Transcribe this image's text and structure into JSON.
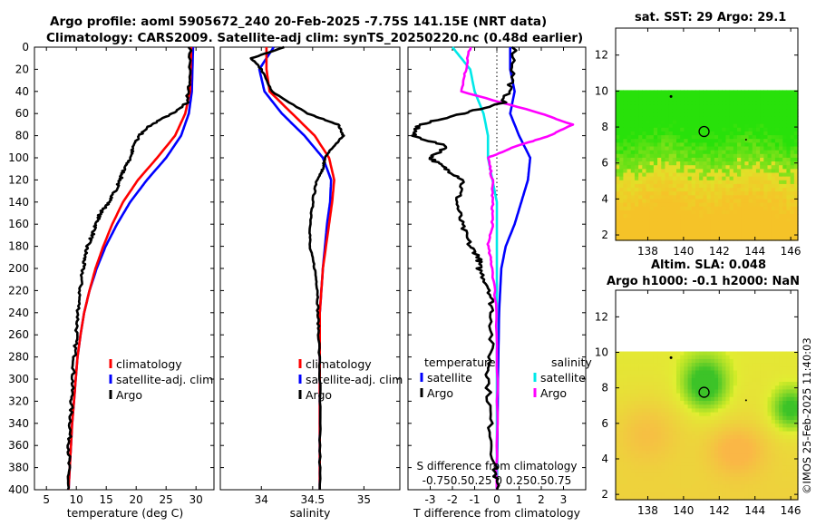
{
  "header": {
    "title_line1": "Argo profile: aoml 5905672_240 20-Feb-2025 -7.75S 141.15E (NRT data)",
    "title_line2": "Climatology: CARS2009. Satellite-adj clim: synTS_20250220.nc (0.48d earlier)"
  },
  "side_label": "©IMOS 25-Feb-2025 11:40:03",
  "colors": {
    "climatology": "#ff0000",
    "satellite": "#0000ff",
    "argo": "#000000",
    "sat_salinity": "#00e8e8",
    "argo_salinity": "#ff00ff"
  },
  "chart_data": [
    {
      "id": "temperature",
      "type": "line",
      "xlabel": "temperature (deg C)",
      "ylabel": "",
      "xlim": [
        3,
        33
      ],
      "ylim": [
        400,
        0
      ],
      "xticks": [
        5,
        10,
        15,
        20,
        25,
        30
      ],
      "yticks": [
        0,
        20,
        40,
        60,
        80,
        100,
        120,
        140,
        160,
        180,
        200,
        220,
        240,
        260,
        280,
        300,
        320,
        340,
        360,
        380,
        400
      ],
      "legend": [
        "climatology",
        "satellite-adj. clim",
        "Argo"
      ],
      "series": [
        {
          "name": "climatology",
          "depth": [
            0,
            40,
            60,
            80,
            100,
            120,
            140,
            160,
            180,
            200,
            220,
            240,
            260,
            280,
            300,
            320,
            340,
            360,
            380,
            400
          ],
          "values": [
            29.2,
            29.0,
            28.2,
            26.5,
            23.5,
            20.3,
            17.8,
            16.0,
            14.5,
            13.2,
            12.2,
            11.3,
            10.7,
            10.2,
            9.9,
            9.6,
            9.3,
            9.1,
            8.9,
            8.7
          ]
        },
        {
          "name": "satellite-adj. clim",
          "depth": [
            0,
            40,
            60,
            80,
            100,
            120,
            140,
            160,
            180,
            200,
            220,
            240,
            260,
            280,
            300,
            320,
            340,
            360,
            380,
            400
          ],
          "values": [
            29.5,
            29.3,
            28.8,
            27.5,
            25.0,
            21.8,
            19.0,
            16.8,
            14.9,
            13.4,
            12.2,
            11.3,
            10.7,
            10.2,
            9.9,
            9.6,
            9.3,
            9.1,
            8.9,
            8.7
          ]
        },
        {
          "name": "Argo",
          "depth": [
            0,
            30,
            50,
            60,
            70,
            80,
            90,
            100,
            110,
            120,
            130,
            140,
            150,
            160,
            170,
            180,
            190,
            200,
            220,
            240,
            260,
            280,
            300,
            320,
            340,
            360,
            380,
            400
          ],
          "values": [
            29.0,
            28.9,
            28.5,
            26.0,
            22.5,
            20.5,
            19.5,
            19.0,
            18.0,
            17.3,
            16.5,
            15.5,
            14.0,
            13.3,
            12.7,
            11.8,
            11.4,
            11.1,
            10.6,
            10.3,
            10.0,
            9.7,
            9.4,
            9.2,
            9.0,
            8.8,
            8.7,
            8.6
          ]
        }
      ]
    },
    {
      "id": "salinity",
      "type": "line",
      "xlabel": "salinity",
      "xlim": [
        33.6,
        35.35
      ],
      "ylim": [
        400,
        0
      ],
      "xticks": [
        34,
        34.5,
        35
      ],
      "legend": [
        "climatology",
        "satellite-adj. clim",
        "Argo"
      ],
      "series": [
        {
          "name": "climatology",
          "depth": [
            0,
            20,
            40,
            60,
            80,
            100,
            120,
            140,
            160,
            200,
            240,
            300,
            350,
            400
          ],
          "values": [
            34.05,
            34.05,
            34.08,
            34.3,
            34.52,
            34.66,
            34.71,
            34.69,
            34.66,
            34.6,
            34.57,
            34.57,
            34.57,
            34.57
          ]
        },
        {
          "name": "satellite-adj. clim",
          "depth": [
            0,
            20,
            40,
            60,
            80,
            100,
            120,
            140,
            160,
            200,
            240,
            300,
            350,
            400
          ],
          "values": [
            34.12,
            33.98,
            34.03,
            34.2,
            34.42,
            34.6,
            34.68,
            34.67,
            34.64,
            34.6,
            34.57,
            34.57,
            34.57,
            34.57
          ]
        },
        {
          "name": "Argo",
          "depth": [
            0,
            10,
            20,
            40,
            60,
            70,
            80,
            90,
            100,
            110,
            120,
            140,
            160,
            180,
            200,
            220,
            240,
            260,
            300,
            350,
            400
          ],
          "values": [
            34.22,
            33.9,
            34.0,
            34.1,
            34.45,
            34.75,
            34.8,
            34.7,
            34.62,
            34.6,
            34.54,
            34.5,
            34.48,
            34.47,
            34.52,
            34.55,
            34.55,
            34.56,
            34.57,
            34.57,
            34.57
          ]
        }
      ]
    },
    {
      "id": "differences",
      "type": "line",
      "xlabel": "T difference from climatology",
      "xlim": [
        -4,
        4
      ],
      "ylim": [
        400,
        0
      ],
      "xticks": [
        -3,
        -2,
        -1,
        0,
        1,
        2,
        3
      ],
      "legend_temperature_title": "temperature",
      "legend_salinity_title": "salinity",
      "legend": [
        "satellite",
        "Argo"
      ],
      "s_axis_label": "S difference from climatology",
      "s_ticks": "-0.750.50.25  0  0.250.50.75",
      "series": [
        {
          "name": "temperature satellite",
          "depth": [
            0,
            20,
            40,
            60,
            80,
            100,
            120,
            140,
            160,
            180,
            200,
            240,
            300,
            400
          ],
          "values": [
            0.6,
            0.6,
            0.8,
            0.6,
            1.0,
            1.5,
            1.4,
            1.1,
            0.8,
            0.4,
            0.2,
            0.1,
            0.05,
            0.0
          ]
        },
        {
          "name": "temperature Argo",
          "depth": [
            0,
            30,
            50,
            60,
            70,
            80,
            90,
            100,
            110,
            120,
            140,
            160,
            180,
            190,
            200,
            220,
            240,
            280,
            300,
            340,
            380,
            400
          ],
          "values": [
            0.8,
            0.7,
            0.3,
            -1.5,
            -3.5,
            -3.8,
            -2.2,
            -3.0,
            -2.3,
            -1.5,
            -1.8,
            -1.6,
            -1.2,
            -0.8,
            -0.8,
            -0.3,
            -0.2,
            -0.3,
            -0.4,
            -0.3,
            -0.1,
            0.0
          ]
        },
        {
          "name": "salinity satellite",
          "depth": [
            0,
            20,
            40,
            60,
            80,
            100,
            140,
            180,
            200,
            240,
            300,
            400
          ],
          "values": [
            -0.5,
            -0.3,
            -0.25,
            -0.15,
            -0.1,
            -0.1,
            0.0,
            0.0,
            0.0,
            0.0,
            0.0,
            0.0
          ]
        },
        {
          "name": "salinity Argo",
          "depth": [
            0,
            20,
            40,
            60,
            70,
            80,
            90,
            100,
            120,
            140,
            160,
            180,
            200,
            240,
            300,
            400
          ],
          "values": [
            -0.3,
            -0.35,
            -0.4,
            0.5,
            0.85,
            0.6,
            0.2,
            -0.1,
            -0.05,
            -0.05,
            -0.05,
            -0.1,
            -0.05,
            0.0,
            0.0,
            0.0
          ]
        }
      ]
    },
    {
      "id": "sst_map",
      "type": "heatmap",
      "title": "sat. SST: 29 Argo: 29.1",
      "xlim": [
        136.2,
        146.4
      ],
      "ylim": [
        1.7,
        13.5
      ],
      "xticks": [
        138,
        140,
        142,
        144,
        146
      ],
      "yticks": [
        2,
        4,
        6,
        8,
        10,
        12
      ],
      "argo_position": [
        141.15,
        7.75
      ]
    },
    {
      "id": "sla_map",
      "type": "heatmap",
      "title1": "Altim. SLA: 0.048",
      "title2": "Argo h1000: -0.1 h2000: NaN",
      "xlim": [
        136.2,
        146.4
      ],
      "ylim": [
        1.7,
        13.5
      ],
      "xticks": [
        138,
        140,
        142,
        144,
        146
      ],
      "yticks": [
        2,
        4,
        6,
        8,
        10,
        12
      ],
      "argo_position": [
        141.15,
        7.75
      ]
    }
  ]
}
